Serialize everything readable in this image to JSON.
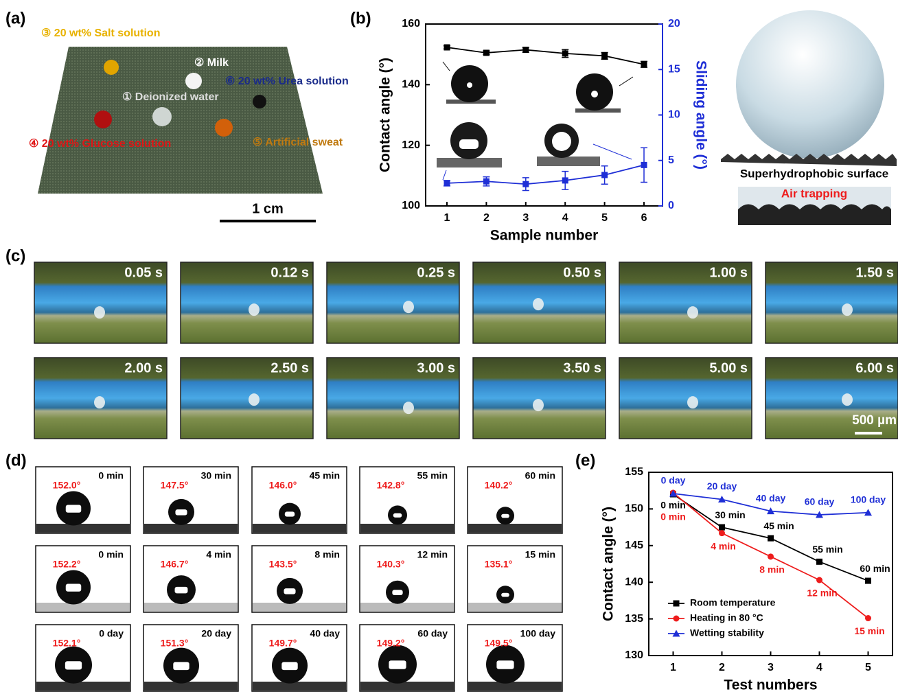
{
  "panel_labels": [
    "(a)",
    "(b)",
    "(c)",
    "(d)",
    "(e)"
  ],
  "photo_a": {
    "labels": [
      "③ 20 wt% Salt solution",
      "② Milk",
      "⑥ 20 wt% Urea solution",
      "① Deionized water",
      "④ 20 wt% Glucose solution",
      "⑤ Artificial sweat"
    ],
    "scale_bar": "1 cm"
  },
  "schematic": {
    "surface_label": "Superhydrophobic surface",
    "air_label": "Air trapping"
  },
  "chart_data": [
    {
      "type": "line",
      "xlabel": "Sample number",
      "ylabel": "Contact angle (°)",
      "y2label": "Sliding angle (°)",
      "x": [
        1,
        2,
        3,
        4,
        5,
        6
      ],
      "xlim": [
        0.46,
        6.47
      ],
      "xticks": [
        1,
        2,
        3,
        4,
        5,
        6
      ],
      "ylim": [
        100,
        160
      ],
      "yticks": [
        100,
        120,
        140,
        160
      ],
      "y2lim": [
        0,
        20
      ],
      "y2ticks": [
        0,
        5,
        10,
        15,
        20
      ],
      "grid": false,
      "series": [
        {
          "color": "#000000",
          "marker": "square",
          "values": [
            152.3,
            150.5,
            151.5,
            150.3,
            149.5,
            146.7
          ],
          "errors": [
            0.5,
            0.6,
            0.8,
            1.3,
            1.1,
            1.0
          ]
        },
        {
          "color": "#1f2fd6",
          "marker": "square",
          "axis": "y2",
          "values": [
            2.5,
            2.7,
            2.4,
            2.8,
            3.4,
            4.5
          ],
          "errors": [
            0.3,
            0.5,
            0.7,
            1.0,
            1.0,
            1.9
          ]
        }
      ]
    },
    {
      "type": "line",
      "xlabel": "Test numbers",
      "ylabel": "Contact angle (°)",
      "x": [
        1,
        2,
        3,
        4,
        5
      ],
      "xlim": [
        0.5,
        5.5
      ],
      "xticks": [
        1,
        2,
        3,
        4,
        5
      ],
      "ylim": [
        130,
        155
      ],
      "yticks": [
        130,
        135,
        140,
        145,
        150,
        155
      ],
      "grid": false,
      "legend": "lower left",
      "series": [
        {
          "name": "Room temperature",
          "color": "#000000",
          "marker": "square",
          "values": [
            152.0,
            147.5,
            146.0,
            142.8,
            140.2
          ],
          "point_labels": [
            "0 min",
            "30 min",
            "45 min",
            "55 min",
            "60 min"
          ]
        },
        {
          "name": "Heating in 80 °C",
          "color": "#ee1c1c",
          "marker": "circle",
          "values": [
            152.2,
            146.7,
            143.5,
            140.3,
            135.1
          ],
          "point_labels": [
            "0 min",
            "4 min",
            "8 min",
            "12 min",
            "15 min"
          ]
        },
        {
          "name": "Wetting stability",
          "color": "#1f2fd6",
          "marker": "triangle",
          "values": [
            152.1,
            151.3,
            149.7,
            149.2,
            149.5
          ],
          "point_labels": [
            "0 day",
            "20 day",
            "40 day",
            "60 day",
            "100 day"
          ]
        }
      ]
    }
  ],
  "panel_c": {
    "times": [
      "0.05 s",
      "0.12 s",
      "0.25 s",
      "0.50 s",
      "1.00 s",
      "1.50 s",
      "2.00 s",
      "2.50 s",
      "3.00 s",
      "3.50 s",
      "5.00 s",
      "6.00 s"
    ],
    "scale_bar": "500 µm"
  },
  "panel_d": {
    "rows": [
      {
        "times": [
          "0 min",
          "30 min",
          "45 min",
          "55 min",
          "60 min"
        ],
        "angles": [
          "152.0°",
          "147.5°",
          "146.0°",
          "142.8°",
          "140.2°"
        ]
      },
      {
        "times": [
          "0 min",
          "4 min",
          "8 min",
          "12 min",
          "15 min"
        ],
        "angles": [
          "152.2°",
          "146.7°",
          "143.5°",
          "140.3°",
          "135.1°"
        ]
      },
      {
        "times": [
          "0 day",
          "20 day",
          "40 day",
          "60 day",
          "100 day"
        ],
        "angles": [
          "152.1°",
          "151.3°",
          "149.7°",
          "149.2°",
          "149.5°"
        ]
      }
    ]
  }
}
